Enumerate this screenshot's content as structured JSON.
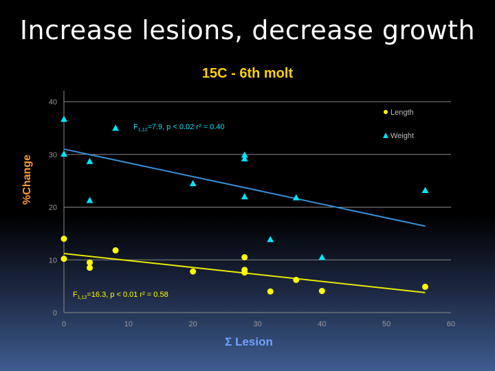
{
  "slide": {
    "title": "Increase lesions, decrease growth"
  },
  "chart_data": {
    "type": "scatter",
    "title": "15C - 6th molt",
    "xlabel": "Σ Lesion",
    "ylabel": "%Change",
    "xlim": [
      0,
      60
    ],
    "ylim": [
      0,
      40
    ],
    "xticks": [
      0,
      10,
      20,
      30,
      40,
      50,
      60
    ],
    "yticks": [
      0,
      10,
      20,
      30,
      40
    ],
    "grid": "horizontal",
    "legend_position": "top-right",
    "series": [
      {
        "name": "Length",
        "marker": "circle",
        "color": "#ffff00",
        "points": [
          [
            0,
            14
          ],
          [
            0,
            10.2
          ],
          [
            4,
            9.5
          ],
          [
            4,
            8.5
          ],
          [
            8,
            11.8
          ],
          [
            20,
            7.8
          ],
          [
            28,
            10.5
          ],
          [
            28,
            8.1
          ],
          [
            28,
            7.6
          ],
          [
            32,
            4
          ],
          [
            36,
            6.2
          ],
          [
            40,
            4.1
          ],
          [
            56,
            4.9
          ]
        ],
        "trend": {
          "x": [
            0,
            56
          ],
          "y": [
            11.2,
            3.8
          ]
        },
        "annotation": {
          "prefix": "F",
          "sub": "1,12",
          "text": "=16.3, p < 0.01 r² = 0.58"
        }
      },
      {
        "name": "Weight",
        "marker": "triangle",
        "color": "#00e5ff",
        "points": [
          [
            0,
            36.7
          ],
          [
            0,
            30.1
          ],
          [
            4,
            28.7
          ],
          [
            4,
            21.3
          ],
          [
            8,
            35
          ],
          [
            20,
            24.5
          ],
          [
            28,
            29.9
          ],
          [
            28,
            29.2
          ],
          [
            28,
            22
          ],
          [
            32,
            13.9
          ],
          [
            36,
            21.8
          ],
          [
            40,
            10.5
          ],
          [
            56,
            23.2
          ]
        ],
        "trend": {
          "x": [
            0,
            56
          ],
          "y": [
            31,
            16.4
          ]
        },
        "annotation": {
          "prefix": "F",
          "sub": "1,12",
          "text": "=7.9, p < 0.02 r² = 0.40"
        }
      }
    ]
  }
}
